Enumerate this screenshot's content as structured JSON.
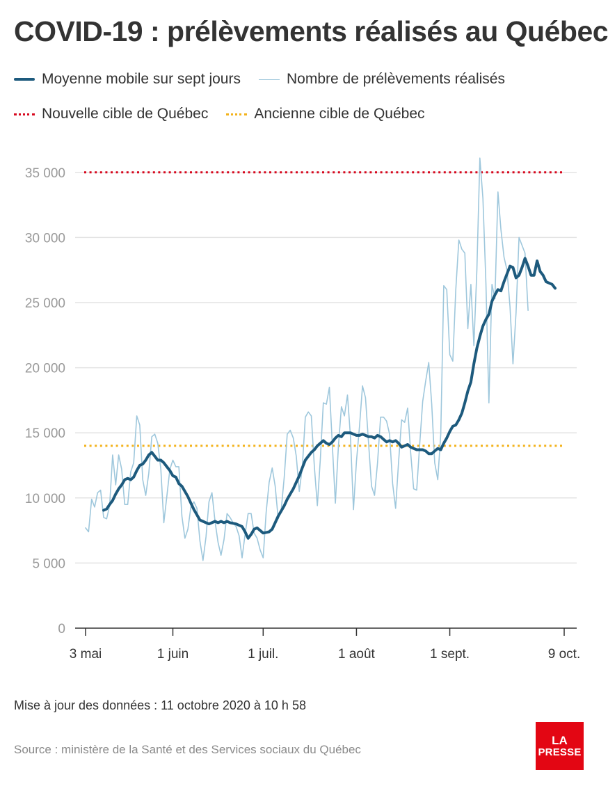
{
  "title": "COVID-19 : prélèvements réalisés au Québec",
  "legend": {
    "moving_average": "Moyenne mobile sur sept jours",
    "daily": "Nombre de prélèvements réalisés",
    "new_target": "Nouvelle cible de Québec",
    "old_target": "Ancienne cible de Québec"
  },
  "footnote": "Mise à jour des données : 11 octobre 2020 à 10 h 58",
  "source": "Source : ministère de la Santé et des Services sociaux du Québec",
  "logo": {
    "line1": "LA",
    "line2": "PRESSE"
  },
  "colors": {
    "moving_average": "#1d5a7d",
    "daily": "#9ec7dc",
    "new_target": "#d7081e",
    "old_target": "#f3b21b",
    "grid": "#e3e3e3",
    "tick_text": "#9a9a9a"
  },
  "chart_data": {
    "type": "line",
    "title": "COVID-19 : prélèvements réalisés au Québec",
    "x_start": "2020-05-03",
    "x_end": "2020-10-09",
    "x_ticks": [
      {
        "date": "2020-05-03",
        "label": "3 mai"
      },
      {
        "date": "2020-06-01",
        "label": "1 juin"
      },
      {
        "date": "2020-07-01",
        "label": "1 juil."
      },
      {
        "date": "2020-08-01",
        "label": "1 août"
      },
      {
        "date": "2020-09-01",
        "label": "1 sept."
      },
      {
        "date": "2020-10-09",
        "label": "9 oct."
      }
    ],
    "y_ticks": [
      {
        "value": 0,
        "label": "0"
      },
      {
        "value": 5000,
        "label": "5 000"
      },
      {
        "value": 10000,
        "label": "10 000"
      },
      {
        "value": 15000,
        "label": "15 000"
      },
      {
        "value": 20000,
        "label": "20 000"
      },
      {
        "value": 25000,
        "label": "25 000"
      },
      {
        "value": 30000,
        "label": "30 000"
      },
      {
        "value": 35000,
        "label": "35 000"
      }
    ],
    "ylim": [
      0,
      36500
    ],
    "grid": true,
    "reference_lines": [
      {
        "name": "Nouvelle cible de Québec",
        "value": 35000
      },
      {
        "name": "Ancienne cible de Québec",
        "value": 14000
      }
    ],
    "series": [
      {
        "name": "Nombre de prélèvements réalisés",
        "start_date": "2020-05-03",
        "values": [
          7700,
          7400,
          9900,
          9300,
          10400,
          10600,
          8500,
          8400,
          9400,
          13300,
          11000,
          13300,
          12200,
          9500,
          9500,
          12000,
          12700,
          16300,
          15600,
          11400,
          10200,
          11900,
          14700,
          14900,
          14200,
          12200,
          8100,
          10100,
          12200,
          12900,
          12400,
          12400,
          8600,
          6900,
          7600,
          9300,
          9700,
          9200,
          6700,
          5200,
          7000,
          9700,
          10400,
          8200,
          6600,
          5600,
          6800,
          8800,
          8500,
          8100,
          7800,
          7100,
          5400,
          7200,
          8800,
          8800,
          7300,
          6900,
          6000,
          5400,
          8900,
          11200,
          12300,
          10900,
          8400,
          9100,
          11600,
          14900,
          15200,
          14600,
          13200,
          10500,
          12300,
          16200,
          16600,
          16300,
          12400,
          9400,
          13000,
          17300,
          17200,
          18500,
          14000,
          9600,
          14000,
          17000,
          16300,
          17900,
          14700,
          9100,
          12800,
          15500,
          18600,
          17700,
          14300,
          10900,
          10200,
          12700,
          16200,
          16200,
          15900,
          14900,
          11100,
          9200,
          12800,
          16000,
          15800,
          16900,
          13500,
          10700,
          10600,
          14100,
          17400,
          19000,
          20400,
          17200,
          12700,
          11400,
          14900,
          26300,
          26000,
          21000,
          20500,
          26000,
          29800,
          29100,
          28800,
          23000,
          26400,
          21700,
          27500,
          36100,
          33000,
          26500,
          17300,
          26400,
          25300,
          33500,
          30600,
          28500,
          27500,
          24700,
          20300,
          24200,
          30000,
          29400,
          28800,
          24400
        ]
      },
      {
        "name": "Moyenne mobile sur sept jours",
        "start_date": "2020-05-09",
        "values": [
          9050,
          9150,
          9500,
          9800,
          10300,
          10700,
          11000,
          11400,
          11500,
          11400,
          11600,
          12100,
          12500,
          12600,
          12900,
          13300,
          13500,
          13200,
          12900,
          12900,
          12700,
          12400,
          12100,
          11700,
          11600,
          11100,
          10900,
          10500,
          10100,
          9600,
          9100,
          8700,
          8300,
          8200,
          8100,
          8000,
          8100,
          8200,
          8100,
          8200,
          8100,
          8200,
          8100,
          8050,
          8000,
          7900,
          7800,
          7400,
          6900,
          7200,
          7600,
          7700,
          7500,
          7300,
          7350,
          7400,
          7600,
          8100,
          8600,
          9000,
          9400,
          9900,
          10300,
          10700,
          11200,
          11700,
          12300,
          12900,
          13200,
          13500,
          13700,
          14000,
          14200,
          14400,
          14200,
          14100,
          14300,
          14600,
          14800,
          14700,
          15000,
          15000,
          15000,
          14900,
          14800,
          14800,
          14900,
          14800,
          14700,
          14700,
          14600,
          14800,
          14700,
          14500,
          14300,
          14400,
          14300,
          14400,
          14200,
          13900,
          14000,
          14100,
          13900,
          13800,
          13700,
          13700,
          13700,
          13600,
          13400,
          13400,
          13600,
          13800,
          13700,
          14200,
          14600,
          15100,
          15500,
          15600,
          16000,
          16500,
          17300,
          18200,
          18900,
          20300,
          21500,
          22400,
          23200,
          23700,
          24100,
          25100,
          25600,
          26000,
          25900,
          26600,
          27200,
          27800,
          27700,
          26900,
          27100,
          27700,
          28400,
          27800,
          27100,
          27100,
          28200,
          27400,
          27100,
          26600,
          26500,
          26400,
          26100
        ]
      }
    ]
  }
}
